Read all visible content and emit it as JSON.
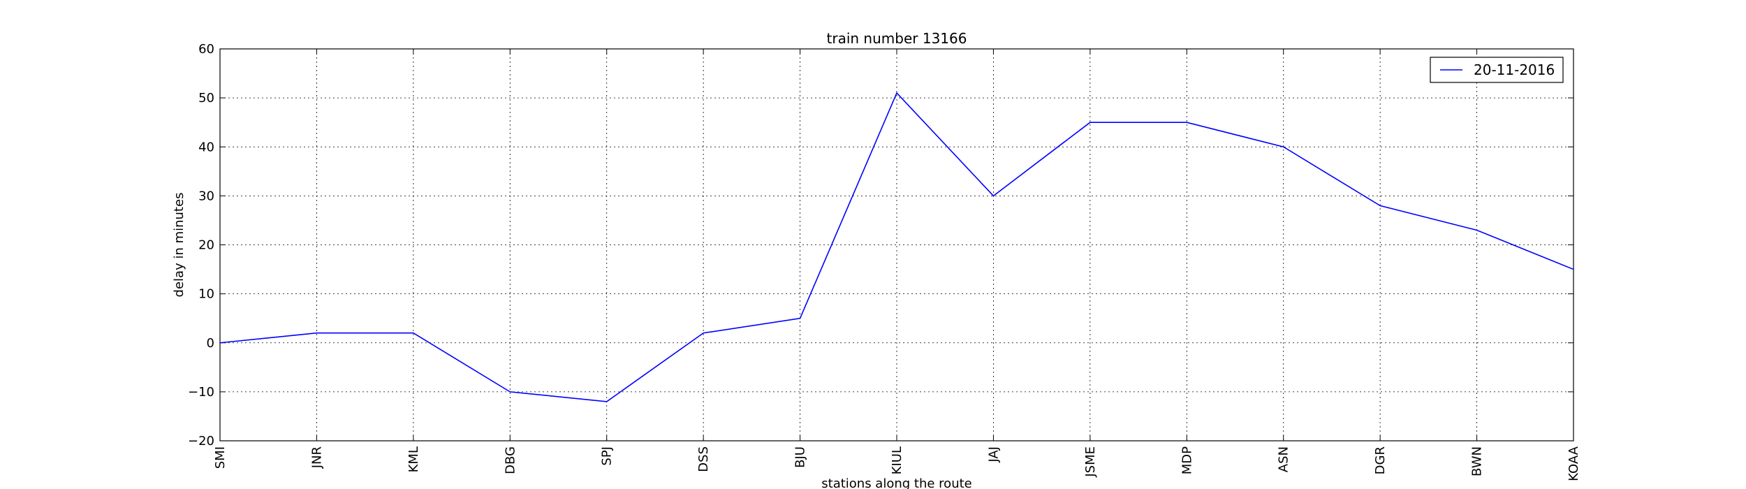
{
  "chart_data": {
    "type": "line",
    "title": "train number 13166",
    "xlabel": "stations along the route",
    "ylabel": "delay in minutes",
    "categories": [
      "SMI",
      "JNR",
      "KML",
      "DBG",
      "SPJ",
      "DSS",
      "BJU",
      "KIUL",
      "JAJ",
      "JSME",
      "MDP",
      "ASN",
      "DGR",
      "BWN",
      "KOAA"
    ],
    "series": [
      {
        "name": "20-11-2016",
        "values": [
          0,
          2,
          2,
          -10,
          -12,
          2,
          5,
          51,
          30,
          45,
          45,
          40,
          28,
          23,
          15
        ],
        "color": "#0000ff"
      }
    ],
    "ylim": [
      -20,
      60
    ],
    "yticks": [
      -20,
      -10,
      0,
      10,
      20,
      30,
      40,
      50,
      60
    ],
    "grid": true,
    "legend_position": "top-right"
  }
}
